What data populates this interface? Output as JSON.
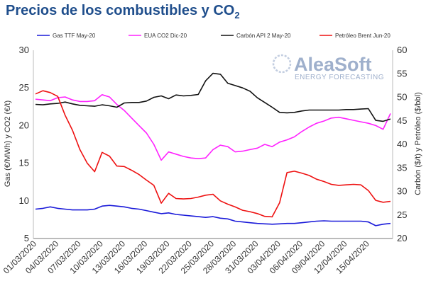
{
  "chart_data": {
    "type": "line",
    "title_main": "Precios de los combustibles y CO",
    "title_sub": "2",
    "ylabel_left": "Gas (€/MWh) y CO2 (€/t)",
    "ylabel_right": "Carbón ($/t) y Petróleo ($/bbl)",
    "ylim_left": [
      5,
      30
    ],
    "ylim_right": [
      20,
      60
    ],
    "yticks_left": [
      5,
      10,
      15,
      20,
      25,
      30
    ],
    "yticks_right": [
      20,
      25,
      30,
      35,
      40,
      45,
      50,
      55,
      60
    ],
    "legend_position": "top",
    "grid": false,
    "x_labels": [
      "01/03/2020",
      "04/03/2020",
      "07/03/2020",
      "10/03/2020",
      "13/03/2020",
      "16/03/2020",
      "19/03/2020",
      "22/03/2020",
      "25/03/2020",
      "28/03/2020",
      "31/03/2020",
      "03/04/2020",
      "06/04/2020",
      "09/04/2020",
      "12/04/2020",
      "15/04/2020"
    ],
    "x": [
      0,
      1,
      2,
      3,
      4,
      5,
      6,
      7,
      8,
      9,
      10,
      11,
      12,
      13,
      14,
      15,
      16,
      17,
      18,
      19,
      20,
      21,
      22,
      23,
      24,
      25,
      26,
      27,
      28,
      29,
      30,
      31,
      32,
      33,
      34,
      35,
      36,
      37,
      38,
      39,
      40,
      41,
      42,
      43,
      44,
      45,
      46,
      47,
      48
    ],
    "series": [
      {
        "name": "Gas TTF May-20",
        "axis": "left",
        "color": "#1a1ad9",
        "values": [
          8.9,
          9.0,
          9.2,
          9.0,
          8.9,
          8.8,
          8.8,
          8.8,
          8.9,
          9.3,
          9.4,
          9.3,
          9.2,
          9.0,
          8.9,
          8.7,
          8.5,
          8.3,
          8.4,
          8.2,
          8.1,
          8.0,
          7.9,
          7.8,
          7.9,
          7.7,
          7.6,
          7.3,
          7.2,
          7.1,
          7.0,
          6.95,
          6.9,
          6.95,
          7.0,
          7.0,
          7.1,
          7.2,
          7.3,
          7.35,
          7.3,
          7.3,
          7.3,
          7.3,
          7.3,
          7.2,
          6.7,
          6.9,
          7.0
        ]
      },
      {
        "name": "EUA CO2 Dic-20",
        "axis": "left",
        "color": "#ff22ff",
        "values": [
          23.5,
          23.4,
          23.3,
          23.7,
          23.8,
          23.4,
          23.2,
          23.2,
          23.3,
          24.1,
          23.8,
          22.8,
          22.0,
          21.0,
          20.0,
          19.0,
          17.5,
          15.4,
          16.5,
          16.2,
          15.9,
          15.7,
          15.6,
          15.7,
          16.8,
          17.4,
          17.2,
          16.5,
          16.6,
          16.8,
          17.0,
          17.5,
          17.2,
          17.8,
          18.1,
          18.5,
          19.2,
          19.8,
          20.3,
          20.6,
          21.0,
          21.1,
          20.9,
          20.7,
          20.5,
          20.3,
          20.0,
          19.5,
          21.6
        ]
      },
      {
        "name": "Carbón API 2 May-20",
        "axis": "right",
        "color": "#111111",
        "values": [
          48.5,
          48.4,
          48.6,
          48.7,
          49.0,
          48.6,
          48.3,
          48.2,
          48.1,
          48.4,
          48.2,
          47.9,
          48.8,
          48.9,
          48.9,
          49.2,
          50.0,
          50.3,
          49.7,
          50.5,
          50.3,
          50.4,
          50.6,
          53.5,
          55.1,
          54.9,
          53.0,
          52.5,
          52.0,
          51.3,
          49.9,
          48.9,
          47.9,
          46.8,
          46.7,
          46.8,
          47.1,
          47.3,
          47.3,
          47.3,
          47.3,
          47.3,
          47.4,
          47.4,
          47.5,
          47.6,
          45.1,
          44.9,
          45.4
        ]
      },
      {
        "name": "Petróleo Brent Jun-20",
        "axis": "right",
        "color": "#ee1111",
        "values": [
          50.7,
          51.4,
          51.0,
          50.2,
          46.2,
          43.0,
          38.9,
          36.0,
          34.2,
          38.3,
          37.5,
          35.4,
          35.3,
          34.5,
          33.6,
          32.4,
          31.3,
          27.5,
          29.6,
          28.5,
          28.4,
          28.5,
          28.8,
          29.2,
          29.4,
          28.0,
          27.3,
          26.7,
          26.0,
          25.7,
          25.3,
          24.7,
          24.6,
          27.6,
          34.0,
          34.3,
          33.9,
          33.4,
          32.6,
          32.1,
          31.5,
          31.3,
          31.4,
          31.5,
          31.4,
          30.2,
          28.1,
          27.7,
          27.9
        ]
      }
    ]
  },
  "logo": {
    "name": "AleaSoft",
    "tagline": "ENERGY FORECASTING"
  }
}
